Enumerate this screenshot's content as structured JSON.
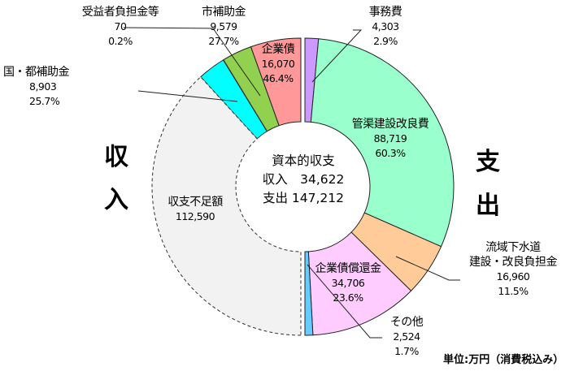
{
  "chart_data": {
    "type": "pie",
    "subtype": "split-donut (left half = income, right half = expenditure)",
    "unit": "単位:万円（消費税込み）",
    "center": {
      "title": "資本的収支",
      "income_label": "収入",
      "income_total": "34,622",
      "expense_label": "支出",
      "expense_total": "147,212"
    },
    "side_labels": {
      "income": [
        "収",
        "入"
      ],
      "expense": [
        "支",
        "出"
      ]
    },
    "income": [
      {
        "name": "企業債",
        "value": 16070,
        "value_text": "16,070",
        "pct_text": "46.4%",
        "color": "#ff9999"
      },
      {
        "name": "市補助金",
        "value": 9579,
        "value_text": "9,579",
        "pct_text": "27.7%",
        "color": "#92d050"
      },
      {
        "name": "受益者負担金等",
        "value": 70,
        "value_text": "70",
        "pct_text": "0.2%",
        "color": "#33cccc"
      },
      {
        "name": "国・都補助金",
        "value": 8903,
        "value_text": "8,903",
        "pct_text": "25.7%",
        "color": "#00ffff"
      },
      {
        "name": "収支不足額",
        "value": 112590,
        "value_text": "112,590",
        "pct_text": "",
        "color": "#f2f2f2",
        "dashed": true
      }
    ],
    "expense": [
      {
        "name": "事務費",
        "value": 4303,
        "value_text": "4,303",
        "pct_text": "2.9%",
        "color": "#cc99ff"
      },
      {
        "name": "管渠建設改良費",
        "value": 88719,
        "value_text": "88,719",
        "pct_text": "60.3%",
        "color": "#99ffcc"
      },
      {
        "name": "流域下水道建設・改良負担金",
        "name_lines": [
          "流域下水道",
          "建設・改良負担金"
        ],
        "value": 16960,
        "value_text": "16,960",
        "pct_text": "11.5%",
        "color": "#ffcc99"
      },
      {
        "name": "企業債償還金",
        "value": 34706,
        "value_text": "34,706",
        "pct_text": "23.6%",
        "color": "#ffccff"
      },
      {
        "name": "その他",
        "value": 2524,
        "value_text": "2,524",
        "pct_text": "1.7%",
        "color": "#66ccff"
      }
    ]
  },
  "labels": {
    "kigyosai": {
      "name": "企業債",
      "value": "16,070",
      "pct": "46.4%"
    },
    "shi_hojo": {
      "name": "市補助金",
      "value": "9,579",
      "pct": "27.7%"
    },
    "jueki": {
      "name": "受益者負担金等",
      "value": "70",
      "pct": "0.2%"
    },
    "kuni_to": {
      "name": "国・都補助金",
      "value": "8,903",
      "pct": "25.7%"
    },
    "fusoku": {
      "name": "収支不足額",
      "value": "112,590"
    },
    "jimu": {
      "name": "事務費",
      "value": "4,303",
      "pct": "2.9%"
    },
    "kankyo": {
      "name": "管渠建設改良費",
      "value": "88,719",
      "pct": "60.3%"
    },
    "ryuiki": {
      "name1": "流域下水道",
      "name2": "建設・改良負担金",
      "value": "16,960",
      "pct": "11.5%"
    },
    "shokan": {
      "name": "企業債償還金",
      "value": "34,706",
      "pct": "23.6%"
    },
    "sonota": {
      "name": "その他",
      "value": "2,524",
      "pct": "1.7%"
    }
  },
  "side": {
    "in1": "収",
    "in2": "入",
    "out1": "支",
    "out2": "出"
  },
  "center": {
    "title": "資本的収支",
    "income": "収入　34,622",
    "expense": "支出 147,212"
  },
  "unit": "単位:万円（消費税込み）"
}
